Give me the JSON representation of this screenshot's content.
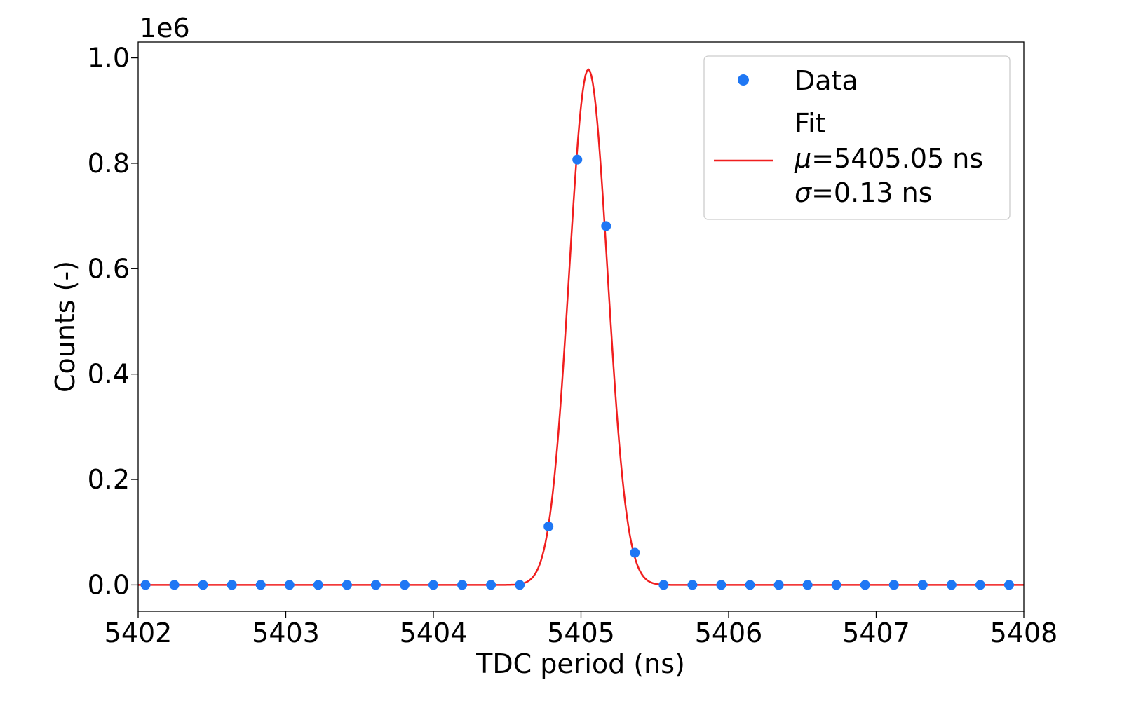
{
  "chart_data": {
    "type": "scatter",
    "xlabel": "TDC period (ns)",
    "ylabel": "Counts (-)",
    "offset_text": "1e6",
    "y_scale_factor": 1000000,
    "xlim": [
      5402,
      5408
    ],
    "ylim": [
      -0.05,
      1.03
    ],
    "x_ticks": [
      5402,
      5403,
      5404,
      5405,
      5406,
      5407,
      5408
    ],
    "x_tick_labels": [
      "5402",
      "5403",
      "5404",
      "5405",
      "5406",
      "5407",
      "5408"
    ],
    "y_ticks": [
      0.0,
      0.2,
      0.4,
      0.6,
      0.8,
      1.0
    ],
    "y_tick_labels": [
      "0.0",
      "0.2",
      "0.4",
      "0.6",
      "0.8",
      "1.0"
    ],
    "grid": false,
    "legend_position": "top-right",
    "series": [
      {
        "name": "Data",
        "kind": "scatter",
        "color": "#1f77f4",
        "x": [
          5402.05,
          5402.245,
          5402.44,
          5402.635,
          5402.83,
          5403.025,
          5403.22,
          5403.415,
          5403.61,
          5403.805,
          5404.0,
          5404.195,
          5404.39,
          5404.585,
          5404.78,
          5404.975,
          5405.17,
          5405.365,
          5405.56,
          5405.755,
          5405.95,
          5406.145,
          5406.34,
          5406.535,
          5406.73,
          5406.925,
          5407.12,
          5407.315,
          5407.51,
          5407.705,
          5407.9
        ],
        "y": [
          0,
          0,
          0,
          0,
          0,
          0,
          0,
          0,
          0,
          0,
          0,
          0,
          0,
          0,
          0.111,
          0.807,
          0.681,
          0.061,
          0,
          0,
          0,
          0,
          0,
          0,
          0,
          0,
          0,
          0,
          0,
          0,
          0
        ]
      },
      {
        "name": "Fit",
        "kind": "line",
        "color": "#f01e1e",
        "model": "gaussian",
        "amplitude": 0.978,
        "mu": 5405.05,
        "sigma": 0.13
      }
    ],
    "legend": {
      "data_label": "Data",
      "fit_title": "Fit",
      "mu_symbol": "μ",
      "mu_text": "=5405.05 ns",
      "sigma_symbol": "σ",
      "sigma_text": "=0.13 ns"
    }
  }
}
